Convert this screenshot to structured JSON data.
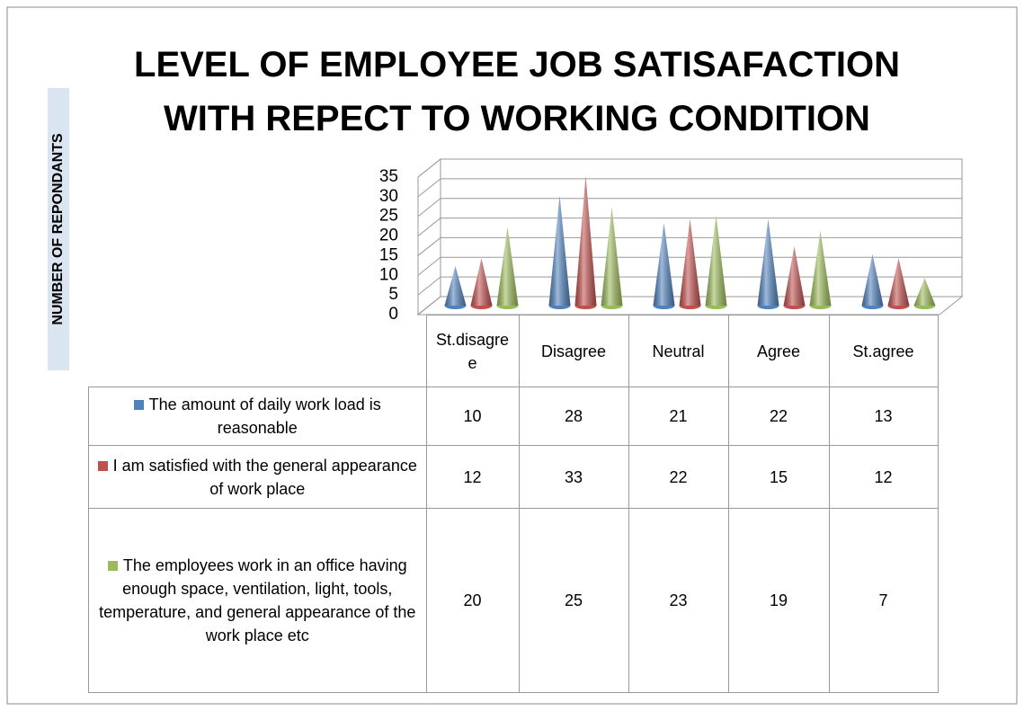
{
  "chart_data": {
    "type": "cone",
    "title": "LEVEL OF EMPLOYEE JOB SATISAFACTION WITH REPECT TO WORKING CONDITION",
    "y_label": "NUMBER OF REPONDANTS",
    "categories": [
      "St.disagree",
      "Disagree",
      "Neutral",
      "Agree",
      "St.agree"
    ],
    "series": [
      {
        "name": "The amount of daily work load is reasonable",
        "color": "#4f81bd",
        "values": [
          10,
          28,
          21,
          22,
          13
        ]
      },
      {
        "name": "I am satisfied with the general appearance of work place",
        "color": "#c0504d",
        "values": [
          12,
          33,
          22,
          15,
          12
        ]
      },
      {
        "name": "The employees work in an office having enough space, ventilation, light, tools, temperature, and general appearance of the work place etc",
        "color": "#9bbb59",
        "values": [
          20,
          25,
          23,
          19,
          7
        ]
      }
    ],
    "ylim": [
      0,
      35
    ],
    "yticks": [
      0,
      5,
      10,
      15,
      20,
      25,
      30,
      35
    ],
    "grid": true
  }
}
